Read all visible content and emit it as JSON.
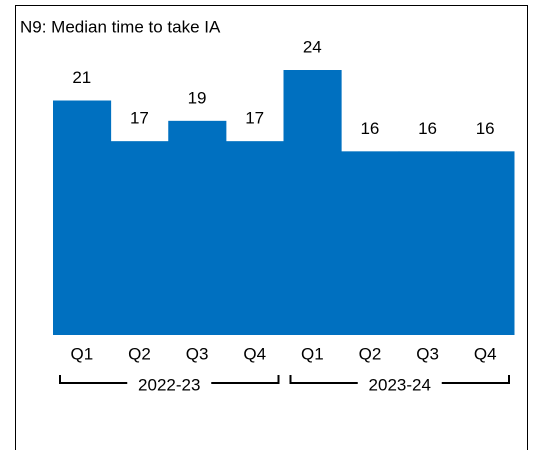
{
  "chart_data": {
    "type": "bar",
    "title": "N9: Median time to take IA",
    "categories": [
      "Q1",
      "Q2",
      "Q3",
      "Q4",
      "Q1",
      "Q2",
      "Q3",
      "Q4"
    ],
    "values": [
      21,
      17,
      19,
      17,
      24,
      16,
      16,
      16
    ],
    "groups": [
      "2022-23",
      "2023-24"
    ],
    "color": "#0070c0"
  }
}
